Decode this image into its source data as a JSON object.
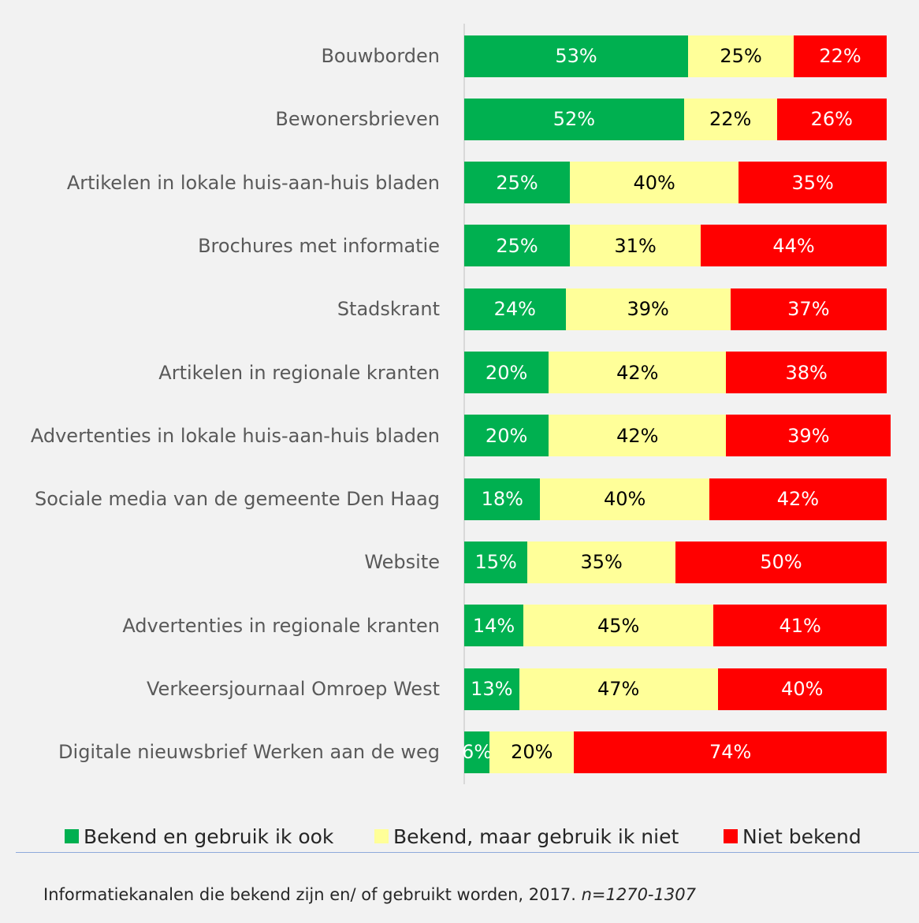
{
  "chart_data": {
    "type": "stacked-bar-horizontal",
    "categories": [
      "Bouwborden",
      "Bewonersbrieven",
      "Artikelen in lokale huis-aan-huis bladen",
      "Brochures met informatie",
      "Stadskrant",
      "Artikelen in regionale kranten",
      "Advertenties in lokale huis-aan-huis bladen",
      "Sociale media van de gemeente Den Haag",
      "Website",
      "Advertenties in regionale kranten",
      "Verkeersjournaal Omroep West",
      "Digitale nieuwsbrief Werken aan de weg"
    ],
    "series": [
      {
        "name": "Bekend en gebruik ik ook",
        "color": "#00b050",
        "label_color": "#ffffff",
        "values": [
          53,
          52,
          25,
          25,
          24,
          20,
          20,
          18,
          15,
          14,
          13,
          6
        ],
        "value_labels": [
          "53%",
          "52%",
          "25%",
          "25%",
          "24%",
          "20%",
          "20%",
          "18%",
          "15%",
          "14%",
          "13%",
          "6%"
        ]
      },
      {
        "name": "Bekend, maar gebruik ik niet",
        "color": "#ffff99",
        "label_color": "#000000",
        "values": [
          25,
          22,
          40,
          31,
          39,
          42,
          42,
          40,
          35,
          45,
          47,
          20
        ],
        "value_labels": [
          "25%",
          "22%",
          "40%",
          "31%",
          "39%",
          "42%",
          "42%",
          "40%",
          "35%",
          "45%",
          "47%",
          "20%"
        ]
      },
      {
        "name": "Niet bekend",
        "color": "#ff0000",
        "label_color": "#ffffff",
        "values": [
          22,
          26,
          35,
          44,
          37,
          38,
          39,
          42,
          50,
          41,
          40,
          74
        ],
        "value_labels": [
          "22%",
          "26%",
          "35%",
          "44%",
          "37%",
          "38%",
          "39%",
          "42%",
          "50%",
          "41%",
          "40%",
          "74%"
        ]
      }
    ],
    "xlim": [
      0,
      100
    ],
    "caption": "Informatiekanalen die bekend zijn en/ of gebruikt worden, 2017.",
    "note": "n=1270-1307"
  }
}
